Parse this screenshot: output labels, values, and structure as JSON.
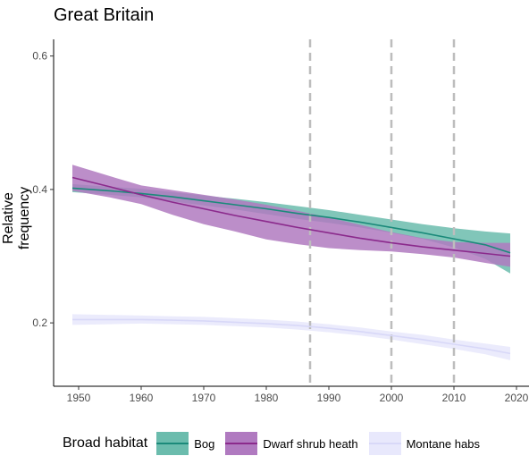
{
  "chart_data": {
    "type": "line",
    "title": "Great Britain",
    "xlabel": "",
    "ylabel": "Relative frequency",
    "xlim": [
      1946,
      2022
    ],
    "ylim": [
      0.105,
      0.625
    ],
    "x_ticks": [
      1950,
      1960,
      1970,
      1980,
      1990,
      2000,
      2010,
      2020
    ],
    "y_ticks": [
      0.2,
      0.4,
      0.6
    ],
    "y_tick_labels": [
      "0.2",
      "0.4",
      "0.6"
    ],
    "vlines": [
      1987,
      2000,
      2010
    ],
    "grid": false,
    "legend_title": "Broad habitat",
    "legend_position": "bottom",
    "series": [
      {
        "name": "Bog",
        "color": "#1b8a7a",
        "fill": "#6bbcad",
        "x": [
          1949,
          1955,
          1960,
          1965,
          1970,
          1975,
          1980,
          1985,
          1990,
          1995,
          2000,
          2005,
          2010,
          2015,
          2019
        ],
        "y": [
          0.402,
          0.398,
          0.394,
          0.389,
          0.383,
          0.377,
          0.371,
          0.364,
          0.358,
          0.351,
          0.343,
          0.335,
          0.326,
          0.317,
          0.305
        ],
        "lower": [
          0.396,
          0.392,
          0.388,
          0.382,
          0.376,
          0.37,
          0.363,
          0.356,
          0.35,
          0.343,
          0.335,
          0.326,
          0.313,
          0.296,
          0.274
        ],
        "upper": [
          0.408,
          0.404,
          0.401,
          0.396,
          0.391,
          0.386,
          0.381,
          0.375,
          0.369,
          0.362,
          0.355,
          0.348,
          0.342,
          0.337,
          0.334
        ]
      },
      {
        "name": "Dwarf shrub heath",
        "color": "#8b2a8c",
        "fill": "#b07ac0",
        "x": [
          1949,
          1955,
          1960,
          1965,
          1970,
          1975,
          1980,
          1985,
          1990,
          1995,
          2000,
          2005,
          2010,
          2015,
          2019
        ],
        "y": [
          0.418,
          0.404,
          0.392,
          0.381,
          0.371,
          0.361,
          0.352,
          0.343,
          0.335,
          0.327,
          0.32,
          0.314,
          0.309,
          0.304,
          0.3
        ],
        "lower": [
          0.398,
          0.388,
          0.378,
          0.362,
          0.348,
          0.337,
          0.325,
          0.318,
          0.312,
          0.309,
          0.307,
          0.303,
          0.298,
          0.29,
          0.284
        ],
        "upper": [
          0.437,
          0.42,
          0.406,
          0.399,
          0.392,
          0.385,
          0.377,
          0.368,
          0.358,
          0.347,
          0.336,
          0.327,
          0.321,
          0.32,
          0.32
        ]
      },
      {
        "name": "Montane habs",
        "color": "#d8d8f8",
        "fill": "#e8e8fc",
        "x": [
          1949,
          1955,
          1960,
          1965,
          1970,
          1975,
          1980,
          1985,
          1990,
          1995,
          2000,
          2005,
          2010,
          2015,
          2019
        ],
        "y": [
          0.205,
          0.205,
          0.205,
          0.204,
          0.203,
          0.201,
          0.199,
          0.196,
          0.192,
          0.187,
          0.181,
          0.175,
          0.168,
          0.161,
          0.154
        ],
        "lower": [
          0.197,
          0.198,
          0.199,
          0.198,
          0.197,
          0.195,
          0.193,
          0.19,
          0.186,
          0.181,
          0.175,
          0.168,
          0.161,
          0.153,
          0.144
        ],
        "upper": [
          0.213,
          0.212,
          0.211,
          0.21,
          0.209,
          0.207,
          0.205,
          0.202,
          0.198,
          0.193,
          0.187,
          0.182,
          0.175,
          0.169,
          0.164
        ]
      }
    ]
  }
}
